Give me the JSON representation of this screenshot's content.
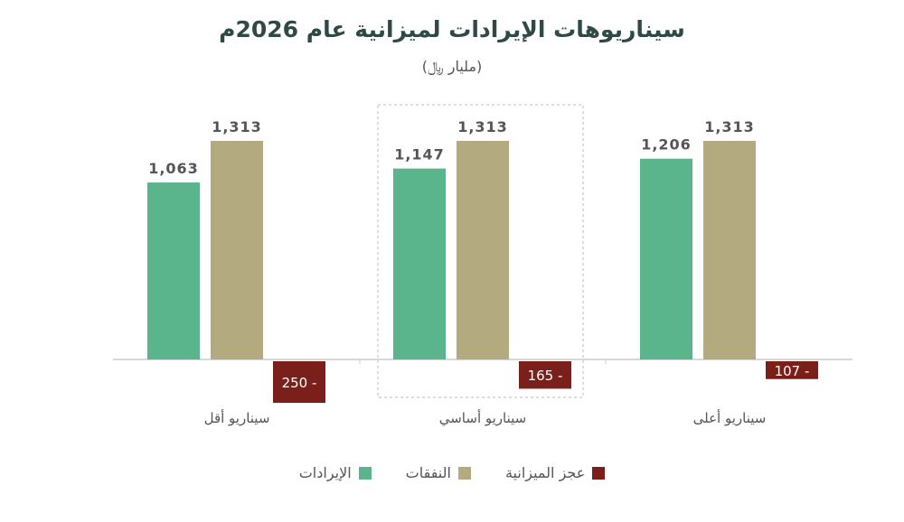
{
  "chart_data": {
    "type": "bar",
    "title": "سيناريوهات الإيرادات لميزانية عام 2026م",
    "subtitle": "(مليار ﷼)",
    "categories": [
      "سيناريو أقل",
      "سيناريو أساسي",
      "سيناريو أعلى"
    ],
    "series": [
      {
        "name": "الإيرادات",
        "color": "#5bb58c",
        "values": [
          1063,
          1147,
          1206
        ],
        "labels": [
          "1,063",
          "1,147",
          "1,206"
        ]
      },
      {
        "name": "النفقات",
        "color": "#b3ab7f",
        "values": [
          1313,
          1313,
          1313
        ],
        "labels": [
          "1,313",
          "1,313",
          "1,313"
        ]
      },
      {
        "name": "عجز الميزانية",
        "color": "#7a1f1a",
        "values": [
          -250,
          -165,
          -107
        ],
        "labels": [
          "250 -",
          "165 -",
          "107 -"
        ]
      }
    ],
    "highlighted_category": "سيناريو أساسي",
    "legend_position": "bottom",
    "grid": false
  }
}
